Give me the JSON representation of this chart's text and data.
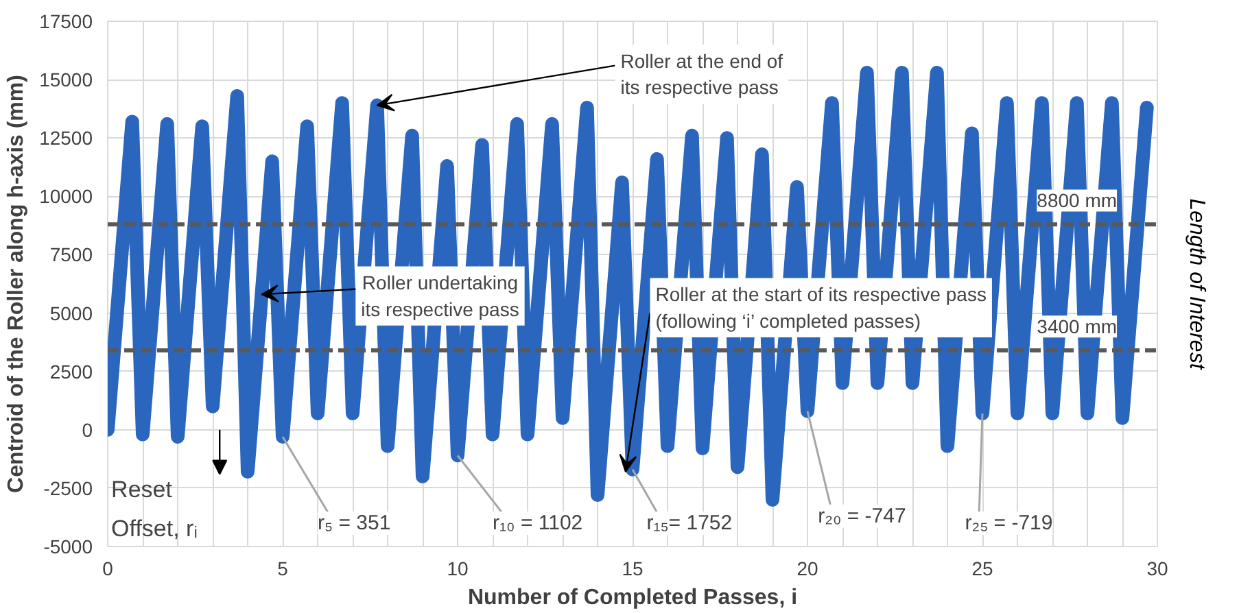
{
  "chart_data": {
    "type": "line",
    "xlabel": "Number of Completed Passes, i",
    "ylabel": "Centroid of the Roller along h-axis (mm)",
    "xlim": [
      0,
      30
    ],
    "ylim": [
      -5000,
      17500
    ],
    "xticks": [
      0,
      {
        "value": 1,
        "label": null
      },
      {
        "value": 2,
        "label": null
      },
      {
        "value": 3,
        "label": null
      },
      {
        "value": 4,
        "label": null
      },
      5,
      {
        "value": 6,
        "label": null
      },
      {
        "value": 7,
        "label": null
      },
      {
        "value": 8,
        "label": null
      },
      {
        "value": 9,
        "label": null
      },
      10,
      {
        "value": 11,
        "label": null
      },
      {
        "value": 12,
        "label": null
      },
      {
        "value": 13,
        "label": null
      },
      {
        "value": 14,
        "label": null
      },
      15,
      {
        "value": 16,
        "label": null
      },
      {
        "value": 17,
        "label": null
      },
      {
        "value": 18,
        "label": null
      },
      {
        "value": 19,
        "label": null
      },
      20,
      {
        "value": 21,
        "label": null
      },
      {
        "value": 22,
        "label": null
      },
      {
        "value": 23,
        "label": null
      },
      {
        "value": 24,
        "label": null
      },
      25,
      {
        "value": 26,
        "label": null
      },
      {
        "value": 27,
        "label": null
      },
      {
        "value": 28,
        "label": null
      },
      {
        "value": 29,
        "label": null
      },
      30
    ],
    "yticks": [
      -5000,
      -2500,
      0,
      2500,
      5000,
      7500,
      10000,
      12500,
      15000,
      17500
    ],
    "grid": true,
    "line_style": "solid",
    "series": [
      {
        "color": "#2a66be",
        "x": [
          0,
          0.7,
          1,
          1.7,
          2,
          2.7,
          3,
          3.7,
          4,
          4.7,
          5,
          5.7,
          6,
          6.7,
          7,
          7.7,
          8,
          8.7,
          9,
          9.7,
          10,
          10.7,
          11,
          11.7,
          12,
          12.7,
          13,
          13.7,
          14,
          14.7,
          15,
          15.7,
          16,
          16.7,
          17,
          17.7,
          18,
          18.7,
          19,
          19.7,
          20,
          20.7,
          21,
          21.7,
          22,
          22.7,
          23,
          23.7,
          24,
          24.7,
          25,
          25.7,
          26,
          26.7,
          27,
          27.7,
          28,
          28.7,
          29,
          29.7
        ],
        "values": [
          0,
          13200,
          -200,
          13100,
          -300,
          13000,
          1000,
          14300,
          -1800,
          11500,
          -300,
          13000,
          700,
          14000,
          700,
          13900,
          -700,
          12600,
          -2000,
          11300,
          -1100,
          12200,
          -200,
          13100,
          -200,
          13100,
          500,
          13800,
          -2800,
          10600,
          -1700,
          11600,
          -700,
          12600,
          -800,
          12500,
          -1600,
          11800,
          -3000,
          10400,
          800,
          14000,
          2000,
          15300,
          2000,
          15300,
          2000,
          15300,
          -700,
          12700,
          700,
          14000,
          700,
          14000,
          700,
          14000,
          700,
          14000,
          500,
          13800
        ]
      }
    ],
    "ref_lines": [
      {
        "axis": "y",
        "value": 8800,
        "label": "8800 mm",
        "color": "#595959",
        "line_style": "dashed"
      },
      {
        "axis": "y",
        "value": 3400,
        "label": "3400 mm",
        "color": "#595959",
        "line_style": "dashed"
      }
    ],
    "annotations": [
      {
        "text": "Roller at the end of\nits respective pass",
        "x": 7.7,
        "y": 13900
      },
      {
        "text": "Roller undertaking\nits respective pass",
        "x": 4.4,
        "y": 5800
      },
      {
        "text": "Roller at the start of its respective pass\n(following ‘i’ completed passes)",
        "x": 14.8,
        "y": -1800
      },
      "Reset\nOffset, rᵢ",
      {
        "text": "r₅ = 351",
        "x": 5,
        "y": -300
      },
      {
        "text": "r₁₀ = 1102",
        "x": 10,
        "y": -1100
      },
      {
        "text": "r₁₅= 1752",
        "x": 15,
        "y": -1700
      },
      {
        "text": "r₂₀ = -747",
        "x": 20,
        "y": 800
      },
      {
        "text": "r₂₅ = -719",
        "x": 25,
        "y": 700
      },
      "Length of Interest"
    ]
  }
}
